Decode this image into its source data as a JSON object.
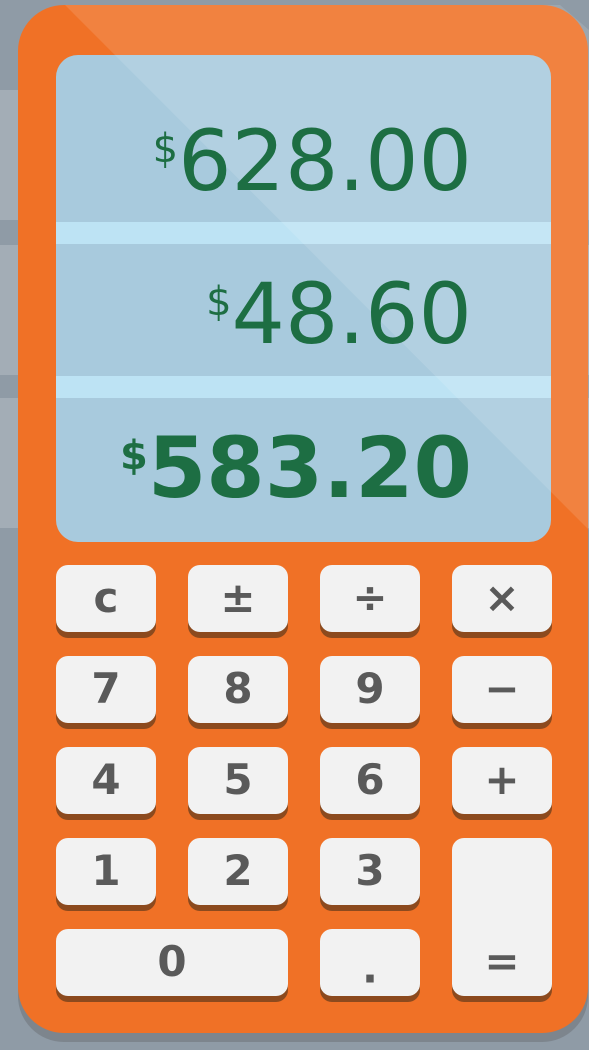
{
  "display": {
    "lines": [
      {
        "currency": "$",
        "amount": "628.00"
      },
      {
        "currency": "$",
        "amount": "48.60"
      },
      {
        "currency": "$",
        "amount": "583.20"
      }
    ]
  },
  "keypad": {
    "keys": [
      "c",
      "±",
      "÷",
      "×",
      "7",
      "8",
      "9",
      "−",
      "4",
      "5",
      "6",
      "+",
      "1",
      "2",
      "3",
      "0",
      ".",
      "="
    ]
  }
}
